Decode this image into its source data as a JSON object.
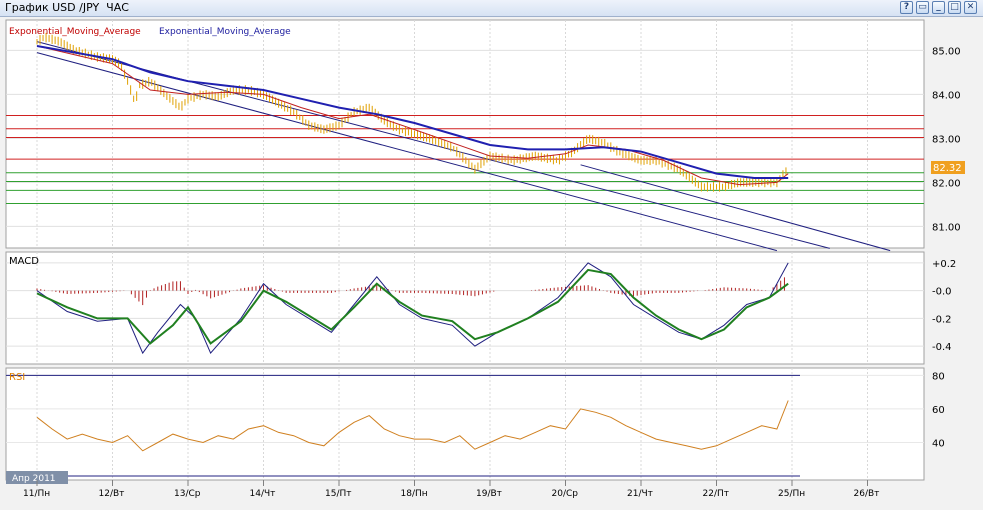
{
  "window": {
    "title": "График USD /JPY  ЧАС",
    "buttons": [
      "?",
      "▭",
      "_",
      "□",
      "✕"
    ]
  },
  "chart_data": [
    {
      "type": "line",
      "panel": "price",
      "legend": [
        "Exponential_Moving_Average",
        "Exponential_Moving_Average"
      ],
      "legend_colors": [
        "#c00000",
        "#2020a0"
      ],
      "yticks": [
        "85.00",
        "84.00",
        "83.00",
        "82.00",
        "81.00"
      ],
      "ylim": [
        80.6,
        85.6
      ],
      "current_price": "82.32",
      "price_series": [
        [
          0,
          85.2
        ],
        [
          0.1,
          85.3
        ],
        [
          0.3,
          85.2
        ],
        [
          0.5,
          85.0
        ],
        [
          0.8,
          84.85
        ],
        [
          1,
          84.8
        ],
        [
          1.1,
          84.7
        ],
        [
          1.2,
          84.3
        ],
        [
          1.3,
          83.8
        ],
        [
          1.35,
          84.2
        ],
        [
          1.5,
          84.3
        ],
        [
          1.7,
          84.0
        ],
        [
          1.9,
          83.7
        ],
        [
          2.0,
          83.9
        ],
        [
          2.2,
          84.0
        ],
        [
          2.4,
          83.95
        ],
        [
          2.6,
          84.1
        ],
        [
          2.8,
          84.1
        ],
        [
          3.0,
          84.0
        ],
        [
          3.2,
          83.8
        ],
        [
          3.4,
          83.6
        ],
        [
          3.6,
          83.3
        ],
        [
          3.8,
          83.2
        ],
        [
          4.0,
          83.3
        ],
        [
          4.2,
          83.6
        ],
        [
          4.4,
          83.7
        ],
        [
          4.6,
          83.4
        ],
        [
          4.8,
          83.2
        ],
        [
          5.0,
          83.1
        ],
        [
          5.2,
          83.0
        ],
        [
          5.5,
          82.8
        ],
        [
          5.8,
          82.3
        ],
        [
          6.0,
          82.6
        ],
        [
          6.3,
          82.5
        ],
        [
          6.6,
          82.6
        ],
        [
          6.9,
          82.5
        ],
        [
          7.1,
          82.7
        ],
        [
          7.3,
          83.0
        ],
        [
          7.5,
          82.9
        ],
        [
          7.7,
          82.7
        ],
        [
          8.0,
          82.5
        ],
        [
          8.2,
          82.5
        ],
        [
          8.5,
          82.3
        ],
        [
          8.8,
          81.9
        ],
        [
          9.1,
          81.9
        ],
        [
          9.3,
          82.0
        ],
        [
          9.6,
          82.0
        ],
        [
          9.8,
          82.0
        ],
        [
          9.95,
          82.32
        ]
      ],
      "ema_fast": [
        [
          0,
          85.1
        ],
        [
          1,
          84.7
        ],
        [
          1.5,
          84.1
        ],
        [
          2,
          84.0
        ],
        [
          2.5,
          84.05
        ],
        [
          3,
          84.0
        ],
        [
          3.5,
          83.7
        ],
        [
          4,
          83.45
        ],
        [
          4.4,
          83.55
        ],
        [
          5,
          83.2
        ],
        [
          5.5,
          82.9
        ],
        [
          6,
          82.6
        ],
        [
          6.5,
          82.55
        ],
        [
          7,
          82.65
        ],
        [
          7.3,
          82.85
        ],
        [
          7.8,
          82.75
        ],
        [
          8.3,
          82.5
        ],
        [
          8.8,
          82.1
        ],
        [
          9.3,
          81.95
        ],
        [
          9.8,
          82.0
        ],
        [
          9.95,
          82.2
        ]
      ],
      "ema_slow": [
        [
          0,
          85.1
        ],
        [
          1,
          84.8
        ],
        [
          1.5,
          84.5
        ],
        [
          2,
          84.3
        ],
        [
          2.5,
          84.2
        ],
        [
          3,
          84.1
        ],
        [
          3.5,
          83.9
        ],
        [
          4,
          83.7
        ],
        [
          4.5,
          83.55
        ],
        [
          5,
          83.35
        ],
        [
          5.5,
          83.1
        ],
        [
          6,
          82.85
        ],
        [
          6.5,
          82.75
        ],
        [
          7,
          82.75
        ],
        [
          7.5,
          82.8
        ],
        [
          8,
          82.7
        ],
        [
          8.5,
          82.45
        ],
        [
          9,
          82.2
        ],
        [
          9.5,
          82.1
        ],
        [
          9.95,
          82.1
        ]
      ],
      "resistance_levels": [
        83.52,
        83.22,
        83.02,
        82.53
      ],
      "support_levels": [
        82.22,
        82.02,
        81.82,
        81.52
      ],
      "channel_lines": [
        {
          "from": [
            0,
            85.2
          ],
          "to": [
            10.5,
            80.5
          ]
        },
        {
          "from": [
            0,
            84.95
          ],
          "to": [
            9.8,
            80.45
          ]
        },
        {
          "from": [
            7.2,
            82.4
          ],
          "to": [
            11.3,
            80.45
          ]
        }
      ]
    },
    {
      "type": "line",
      "panel": "macd",
      "title": "MACD",
      "yticks": [
        "+0.2",
        "-0.0",
        "-0.2",
        "-0.4"
      ],
      "ylim": [
        -0.5,
        0.25
      ],
      "macd_line": [
        [
          0,
          0.0
        ],
        [
          0.4,
          -0.15
        ],
        [
          0.8,
          -0.22
        ],
        [
          1.2,
          -0.2
        ],
        [
          1.4,
          -0.45
        ],
        [
          1.6,
          -0.3
        ],
        [
          1.9,
          -0.1
        ],
        [
          2.1,
          -0.2
        ],
        [
          2.3,
          -0.45
        ],
        [
          2.7,
          -0.2
        ],
        [
          3.0,
          0.05
        ],
        [
          3.3,
          -0.1
        ],
        [
          3.6,
          -0.2
        ],
        [
          3.9,
          -0.3
        ],
        [
          4.2,
          -0.1
        ],
        [
          4.5,
          0.1
        ],
        [
          4.8,
          -0.1
        ],
        [
          5.1,
          -0.2
        ],
        [
          5.5,
          -0.25
        ],
        [
          5.8,
          -0.4
        ],
        [
          6.1,
          -0.3
        ],
        [
          6.5,
          -0.2
        ],
        [
          6.9,
          -0.05
        ],
        [
          7.3,
          0.2
        ],
        [
          7.6,
          0.1
        ],
        [
          7.9,
          -0.1
        ],
        [
          8.2,
          -0.2
        ],
        [
          8.5,
          -0.3
        ],
        [
          8.8,
          -0.35
        ],
        [
          9.1,
          -0.25
        ],
        [
          9.4,
          -0.1
        ],
        [
          9.7,
          -0.05
        ],
        [
          9.95,
          0.2
        ]
      ],
      "signal_line": [
        [
          0,
          -0.02
        ],
        [
          0.4,
          -0.12
        ],
        [
          0.8,
          -0.2
        ],
        [
          1.2,
          -0.2
        ],
        [
          1.5,
          -0.38
        ],
        [
          1.8,
          -0.25
        ],
        [
          2.0,
          -0.12
        ],
        [
          2.3,
          -0.38
        ],
        [
          2.7,
          -0.22
        ],
        [
          3.0,
          0.0
        ],
        [
          3.3,
          -0.08
        ],
        [
          3.6,
          -0.18
        ],
        [
          3.9,
          -0.28
        ],
        [
          4.2,
          -0.12
        ],
        [
          4.5,
          0.05
        ],
        [
          4.8,
          -0.08
        ],
        [
          5.1,
          -0.18
        ],
        [
          5.5,
          -0.22
        ],
        [
          5.8,
          -0.35
        ],
        [
          6.1,
          -0.3
        ],
        [
          6.5,
          -0.2
        ],
        [
          6.9,
          -0.08
        ],
        [
          7.3,
          0.15
        ],
        [
          7.6,
          0.12
        ],
        [
          7.9,
          -0.05
        ],
        [
          8.2,
          -0.18
        ],
        [
          8.5,
          -0.28
        ],
        [
          8.8,
          -0.35
        ],
        [
          9.1,
          -0.28
        ],
        [
          9.4,
          -0.12
        ],
        [
          9.7,
          -0.05
        ],
        [
          9.95,
          0.05
        ]
      ]
    },
    {
      "type": "line",
      "panel": "rsi",
      "title": "RSI",
      "yticks": [
        "80",
        "60",
        "40"
      ],
      "ylim": [
        20,
        82
      ],
      "levels": [
        80,
        20
      ],
      "rsi_line": [
        [
          0,
          55
        ],
        [
          0.2,
          48
        ],
        [
          0.4,
          42
        ],
        [
          0.6,
          45
        ],
        [
          0.8,
          42
        ],
        [
          1.0,
          40
        ],
        [
          1.2,
          44
        ],
        [
          1.4,
          35
        ],
        [
          1.6,
          40
        ],
        [
          1.8,
          45
        ],
        [
          2.0,
          42
        ],
        [
          2.2,
          40
        ],
        [
          2.4,
          44
        ],
        [
          2.6,
          42
        ],
        [
          2.8,
          48
        ],
        [
          3.0,
          50
        ],
        [
          3.2,
          46
        ],
        [
          3.4,
          44
        ],
        [
          3.6,
          40
        ],
        [
          3.8,
          38
        ],
        [
          4.0,
          46
        ],
        [
          4.2,
          52
        ],
        [
          4.4,
          56
        ],
        [
          4.6,
          48
        ],
        [
          4.8,
          44
        ],
        [
          5.0,
          42
        ],
        [
          5.2,
          42
        ],
        [
          5.4,
          40
        ],
        [
          5.6,
          44
        ],
        [
          5.8,
          36
        ],
        [
          6.0,
          40
        ],
        [
          6.2,
          44
        ],
        [
          6.4,
          42
        ],
        [
          6.6,
          46
        ],
        [
          6.8,
          50
        ],
        [
          7.0,
          48
        ],
        [
          7.2,
          60
        ],
        [
          7.4,
          58
        ],
        [
          7.6,
          55
        ],
        [
          7.8,
          50
        ],
        [
          8.0,
          46
        ],
        [
          8.2,
          42
        ],
        [
          8.4,
          40
        ],
        [
          8.6,
          38
        ],
        [
          8.8,
          36
        ],
        [
          9.0,
          38
        ],
        [
          9.2,
          42
        ],
        [
          9.4,
          46
        ],
        [
          9.6,
          50
        ],
        [
          9.8,
          48
        ],
        [
          9.95,
          65
        ]
      ]
    }
  ],
  "x_axis": {
    "month_label": "Апр 2011",
    "ticks": [
      "11/Пн",
      "12/Вт",
      "13/Ср",
      "14/Чт",
      "15/Пт",
      "18/Пн",
      "19/Вт",
      "20/Ср",
      "21/Чт",
      "22/Пт",
      "25/Пн",
      "26/Вт"
    ]
  }
}
